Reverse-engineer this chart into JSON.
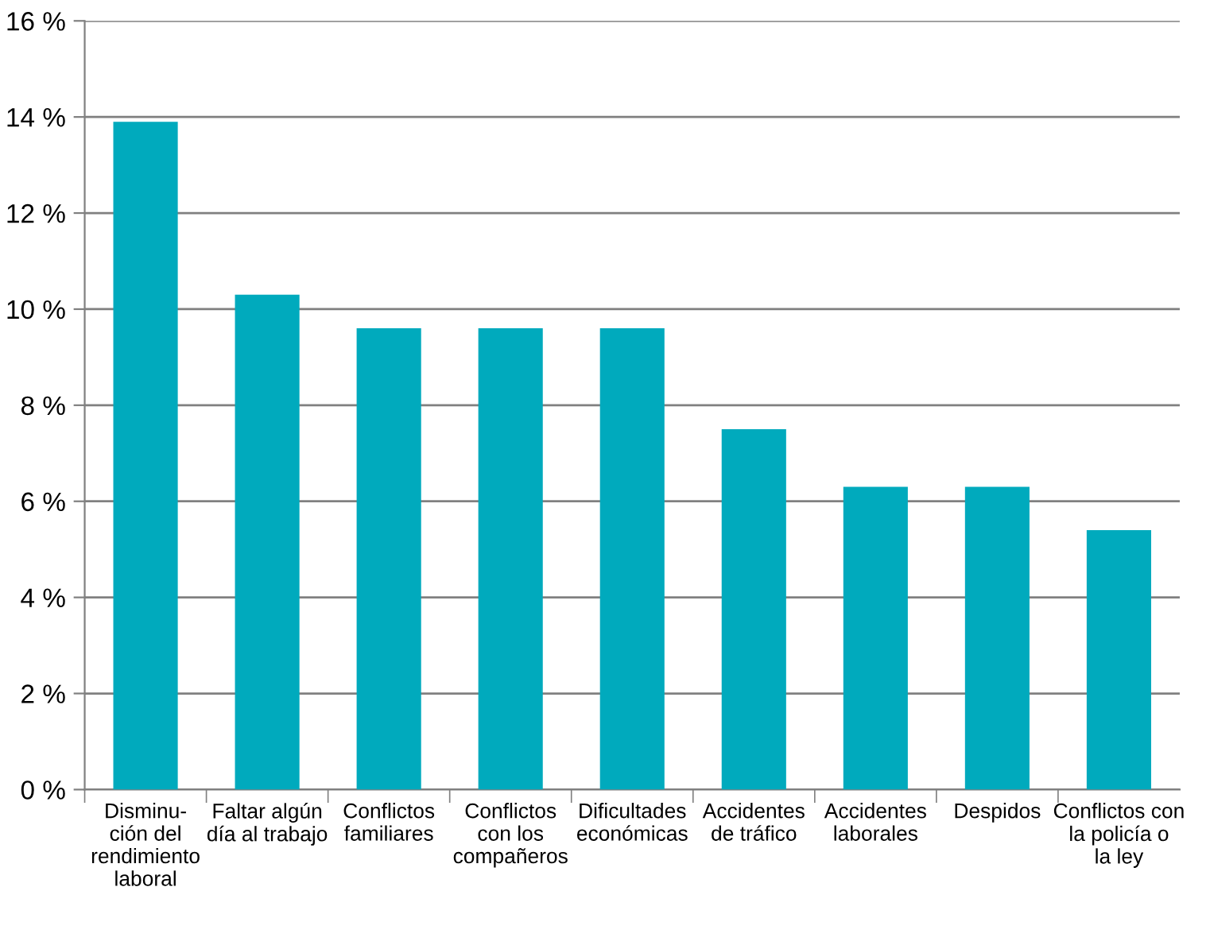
{
  "chart_data": {
    "type": "bar",
    "categories": [
      "Disminu-\nción del\nrendimiento\nlaboral",
      "Faltar algún\ndía al trabajo",
      "Conflictos\nfamiliares",
      "Conflictos\ncon los\ncompañeros",
      "Dificultades\neconómicas",
      "Accidentes\nde tráfico",
      "Accidentes\nlaborales",
      "Despidos",
      "Conflictos con\nla policía o\nla ley"
    ],
    "values": [
      13.9,
      10.3,
      9.6,
      9.6,
      9.6,
      7.5,
      6.3,
      6.3,
      5.4
    ],
    "color": "#00aabd",
    "ylim": [
      0,
      16
    ],
    "yticks": [
      {
        "value": 0,
        "label": "0 %"
      },
      {
        "value": 2,
        "label": "2 %"
      },
      {
        "value": 4,
        "label": "4 %"
      },
      {
        "value": 6,
        "label": "6 %"
      },
      {
        "value": 8,
        "label": "8 %"
      },
      {
        "value": 10,
        "label": "10 %"
      },
      {
        "value": 12,
        "label": "12 %"
      },
      {
        "value": 14,
        "label": "14 %"
      },
      {
        "value": 16,
        "label": "16 %"
      }
    ],
    "grid": "y",
    "legend": false
  }
}
